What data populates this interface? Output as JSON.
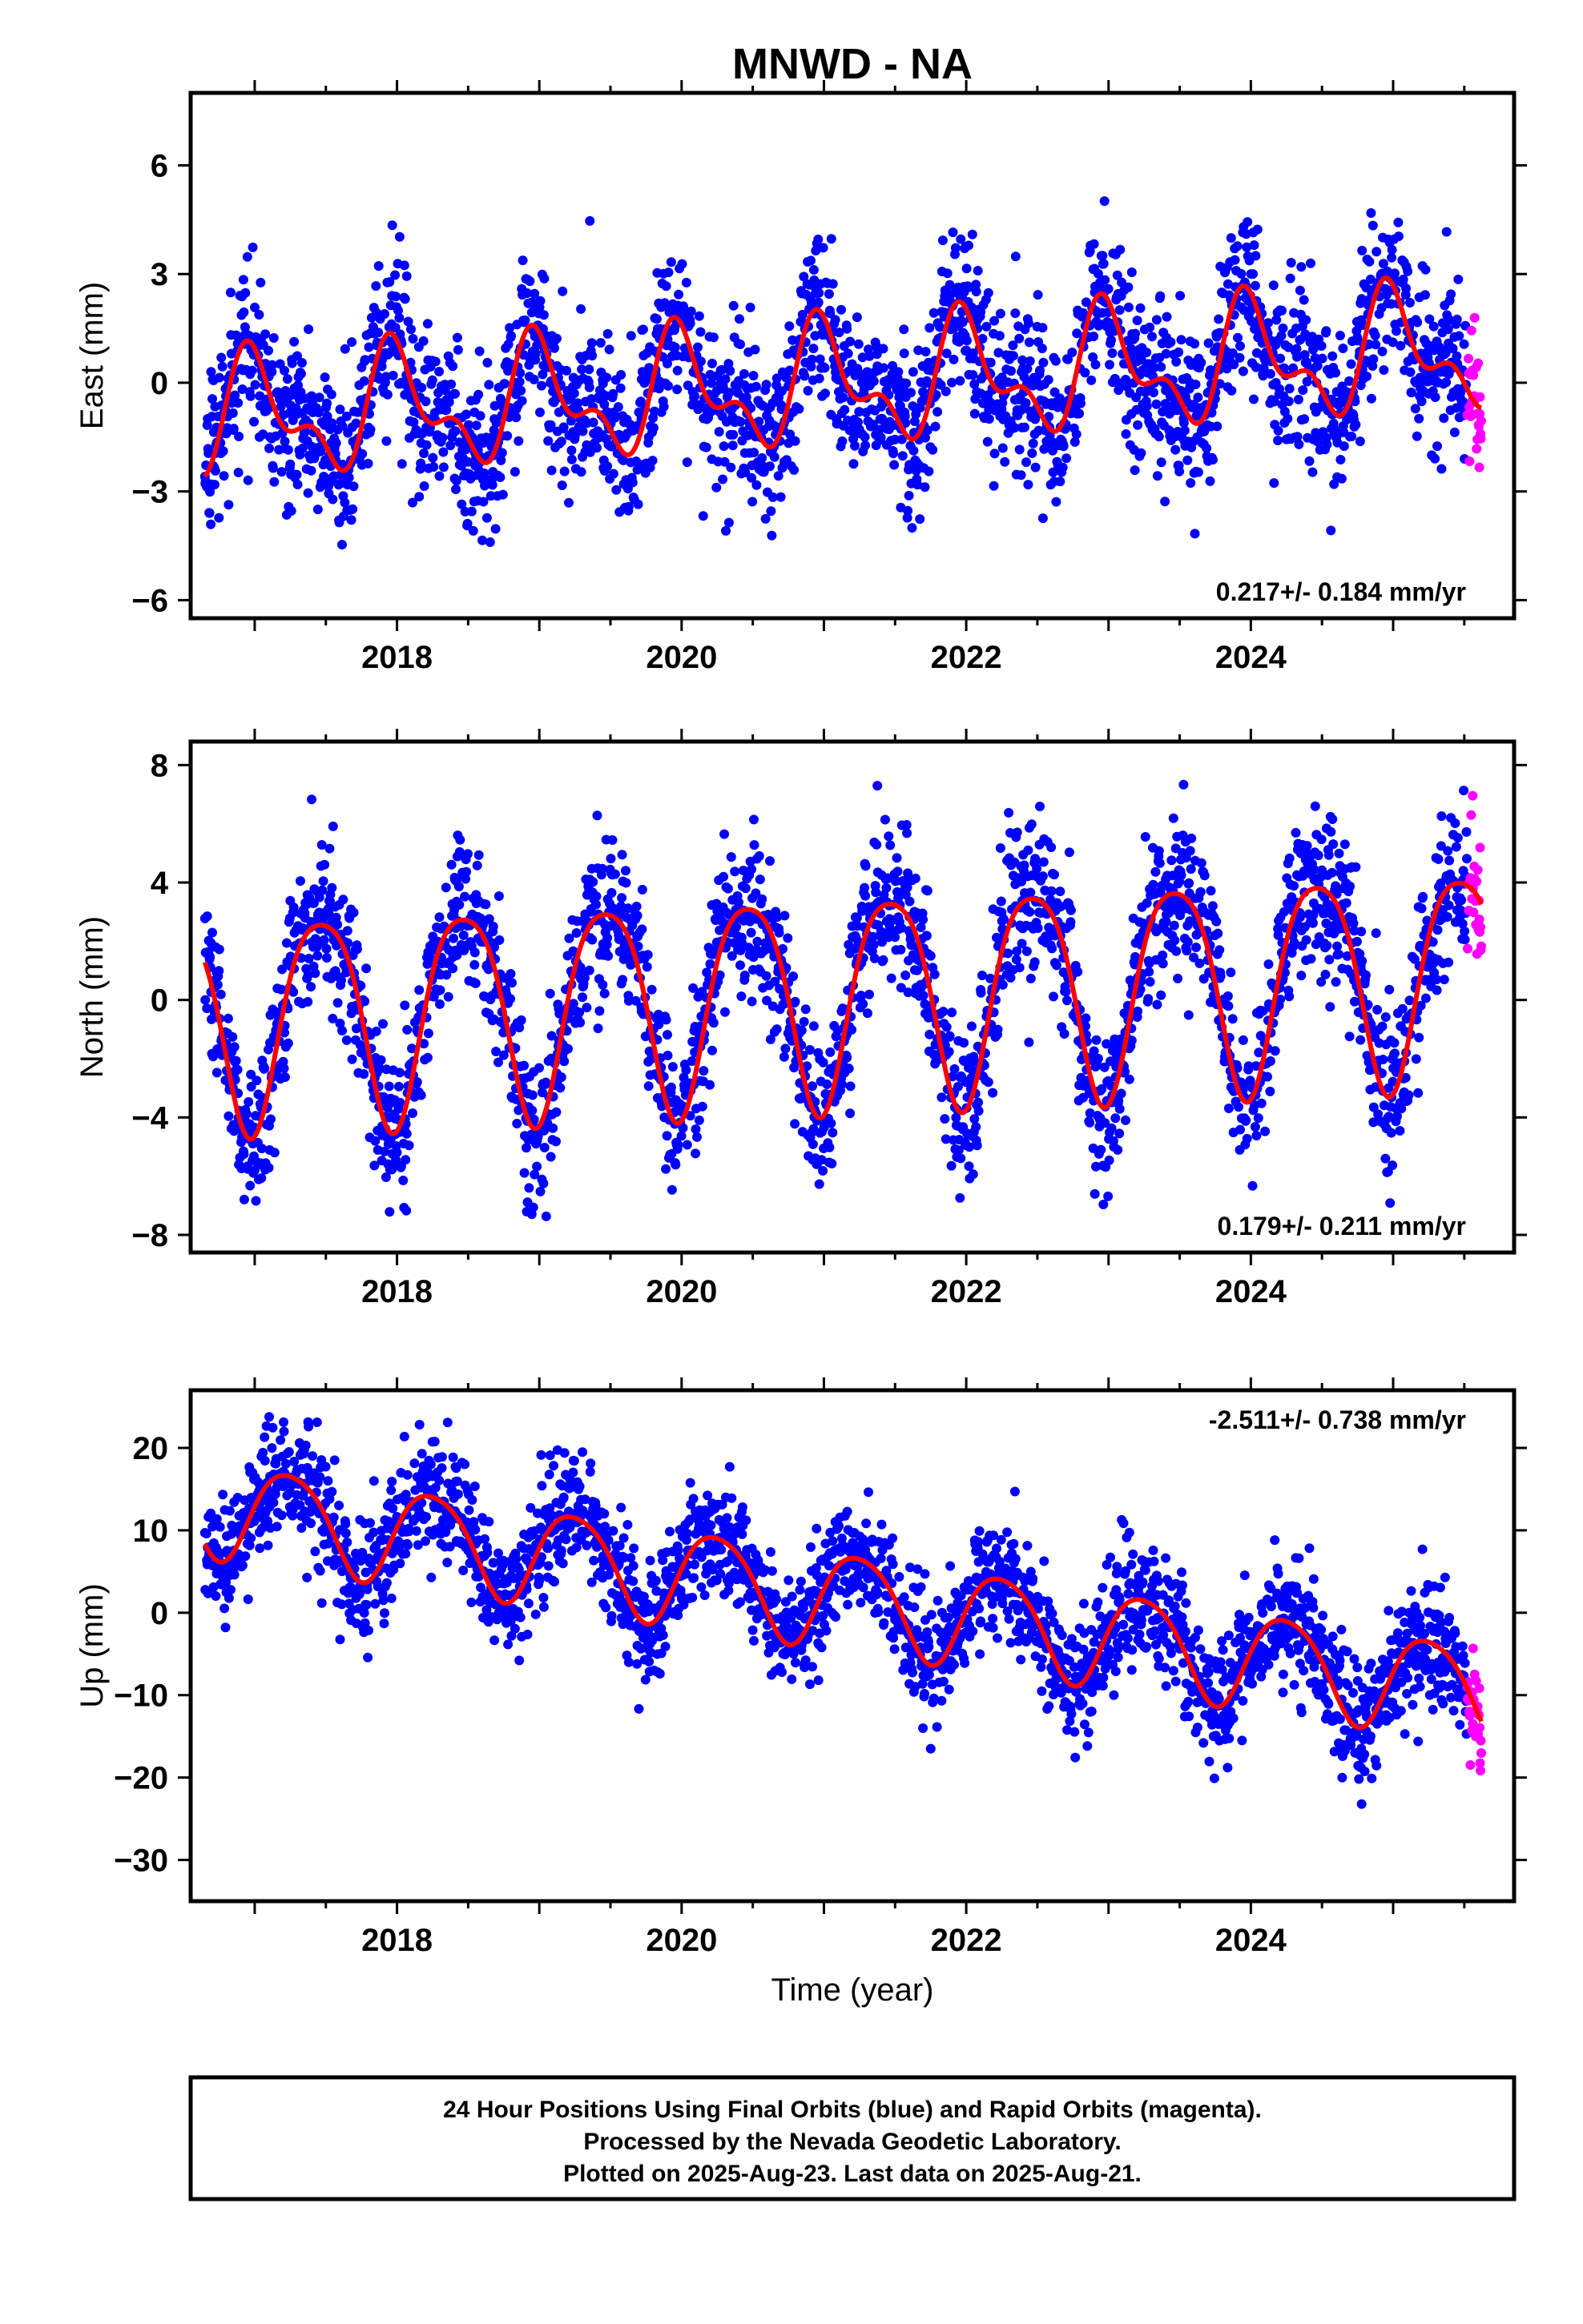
{
  "title": "MNWD - NA",
  "xlabel": "Time (year)",
  "footer": [
    "24 Hour Positions Using Final Orbits (blue) and Rapid Orbits (magenta).",
    "Processed by the Nevada Geodetic Laboratory.",
    "Plotted on 2025-Aug-23. Last data on 2025-Aug-21."
  ],
  "colors": {
    "final": "#0000ff",
    "rapid": "#ff00ff",
    "model": "#ff0000",
    "frame": "#000000"
  },
  "chart_data": [
    {
      "type": "scatter",
      "ylabel": "East (mm)",
      "rate": "0.217+/- 0.184 mm/yr",
      "rate_position": "bottom-right",
      "xlim": [
        2016.55,
        2025.85
      ],
      "ylim": [
        -6.5,
        8.0
      ],
      "xticks": [
        2018,
        2020,
        2022,
        2024
      ],
      "yticks": [
        -6,
        -3,
        0,
        3,
        6
      ],
      "xstart": 2016.65,
      "xend": 2025.62,
      "rapid_start": 2025.52,
      "trend": -1.0,
      "rate_value": 0.217,
      "annual_amp": 1.4,
      "annual_phase": 0.75,
      "semi_amp": 0.8,
      "semi_phase": 0.3,
      "noise": 1.1,
      "series": [
        {
          "name": "Final Orbits",
          "color": "#0000ff"
        },
        {
          "name": "Rapid Orbits",
          "color": "#ff00ff"
        },
        {
          "name": "Model",
          "color": "#ff0000"
        }
      ]
    },
    {
      "type": "scatter",
      "ylabel": "North (mm)",
      "rate": "0.179+/- 0.211 mm/yr",
      "rate_position": "bottom-right",
      "xlim": [
        2016.55,
        2025.85
      ],
      "ylim": [
        -8.6,
        8.8
      ],
      "xticks": [
        2018,
        2020,
        2022,
        2024
      ],
      "yticks": [
        -8,
        -4,
        0,
        4,
        8
      ],
      "xstart": 2016.65,
      "xend": 2025.62,
      "rapid_start": 2025.52,
      "trend": -0.6,
      "rate_value": 0.179,
      "annual_amp": 3.6,
      "annual_phase": 0.22,
      "semi_amp": 0.6,
      "semi_phase": 0.1,
      "noise": 1.3,
      "series": [
        {
          "name": "Final Orbits",
          "color": "#0000ff"
        },
        {
          "name": "Rapid Orbits",
          "color": "#ff00ff"
        },
        {
          "name": "Model",
          "color": "#ff0000"
        }
      ]
    },
    {
      "type": "scatter",
      "ylabel": "Up (mm)",
      "rate": "-2.511+/- 0.738 mm/yr",
      "rate_position": "top-right",
      "xlim": [
        2016.55,
        2025.85
      ],
      "ylim": [
        -35,
        27
      ],
      "xticks": [
        2018,
        2020,
        2022,
        2024
      ],
      "yticks": [
        -30,
        -20,
        -10,
        0,
        10,
        20
      ],
      "xstart": 2016.65,
      "xend": 2025.62,
      "rapid_start": 2025.52,
      "trend": 13.0,
      "rate_value": -2.511,
      "annual_amp": 5.8,
      "annual_phase": 0.0,
      "semi_amp": 0.8,
      "semi_phase": 0.4,
      "noise": 3.6,
      "series": [
        {
          "name": "Final Orbits",
          "color": "#0000ff"
        },
        {
          "name": "Rapid Orbits",
          "color": "#ff00ff"
        },
        {
          "name": "Model",
          "color": "#ff0000"
        }
      ]
    }
  ]
}
